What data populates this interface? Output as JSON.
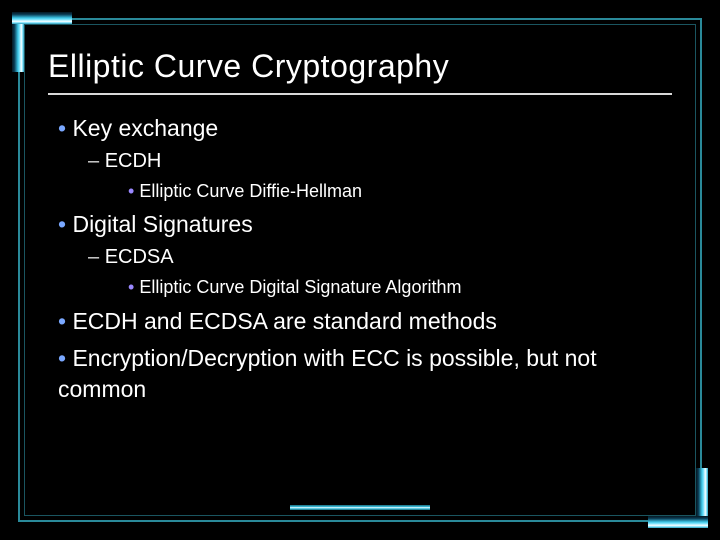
{
  "slide": {
    "background_color": "#000000",
    "text_color": "#ffffff",
    "accent_color": "#3ec8e8",
    "accent_light": "#8ae8ff",
    "bullet_l1_color": "#7aa8ff",
    "bullet_l3_color": "#9a88ff",
    "title": "Elliptic Curve Cryptography",
    "title_fontsize": 32,
    "underline_color": "#d8d8d8",
    "items": [
      {
        "level": 1,
        "style": "bullet1",
        "text": "Key exchange",
        "fontsize": 23
      },
      {
        "level": 2,
        "style": "dash",
        "text": "ECDH",
        "fontsize": 20
      },
      {
        "level": 3,
        "style": "bullet3",
        "text": "Elliptic Curve Diffie-Hellman",
        "fontsize": 18
      },
      {
        "level": 1,
        "style": "bullet1",
        "text": "Digital Signatures",
        "fontsize": 23
      },
      {
        "level": 2,
        "style": "dash",
        "text": "ECDSA",
        "fontsize": 20
      },
      {
        "level": 3,
        "style": "bullet3",
        "text": "Elliptic Curve Digital Signature Algorithm",
        "fontsize": 18
      },
      {
        "level": 1,
        "style": "bullet1",
        "text": "ECDH and ECDSA are standard methods",
        "fontsize": 23
      },
      {
        "level": 1,
        "style": "bullet1",
        "text": "Encryption/Decryption with ECC is possible, but not common",
        "fontsize": 23
      }
    ],
    "footer_bar_width": 140
  }
}
